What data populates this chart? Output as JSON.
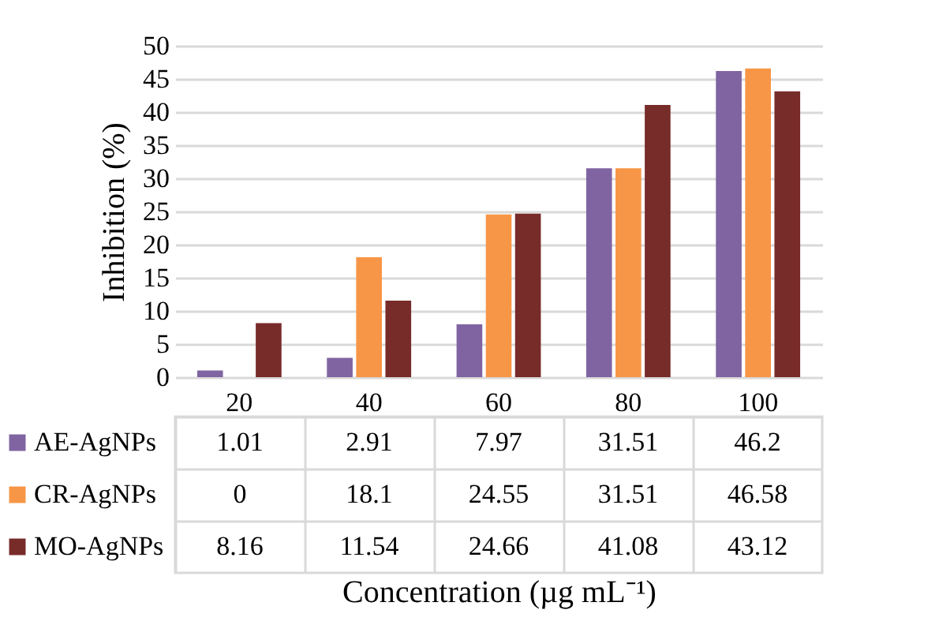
{
  "chart_data": {
    "type": "bar",
    "ylabel": "Inhibition (%)",
    "xlabel": "Concentration (µg mL⁻¹)",
    "categories": [
      "20",
      "40",
      "60",
      "80",
      "100"
    ],
    "series": [
      {
        "name": "AE-AgNPs",
        "color": "#8064a2",
        "values": [
          1.01,
          2.91,
          7.97,
          31.51,
          46.2
        ]
      },
      {
        "name": "CR-AgNPs",
        "color": "#f79646",
        "values": [
          0,
          18.1,
          24.55,
          31.51,
          46.58
        ]
      },
      {
        "name": "MO-AgNPs",
        "color": "#772c2a",
        "values": [
          8.16,
          11.54,
          24.66,
          41.08,
          43.12
        ]
      }
    ],
    "ylim": [
      0,
      50
    ],
    "yticks": [
      0,
      5,
      10,
      15,
      20,
      25,
      30,
      35,
      40,
      45,
      50
    ],
    "grid": "y",
    "data_labels": true,
    "legend": "bottom"
  }
}
